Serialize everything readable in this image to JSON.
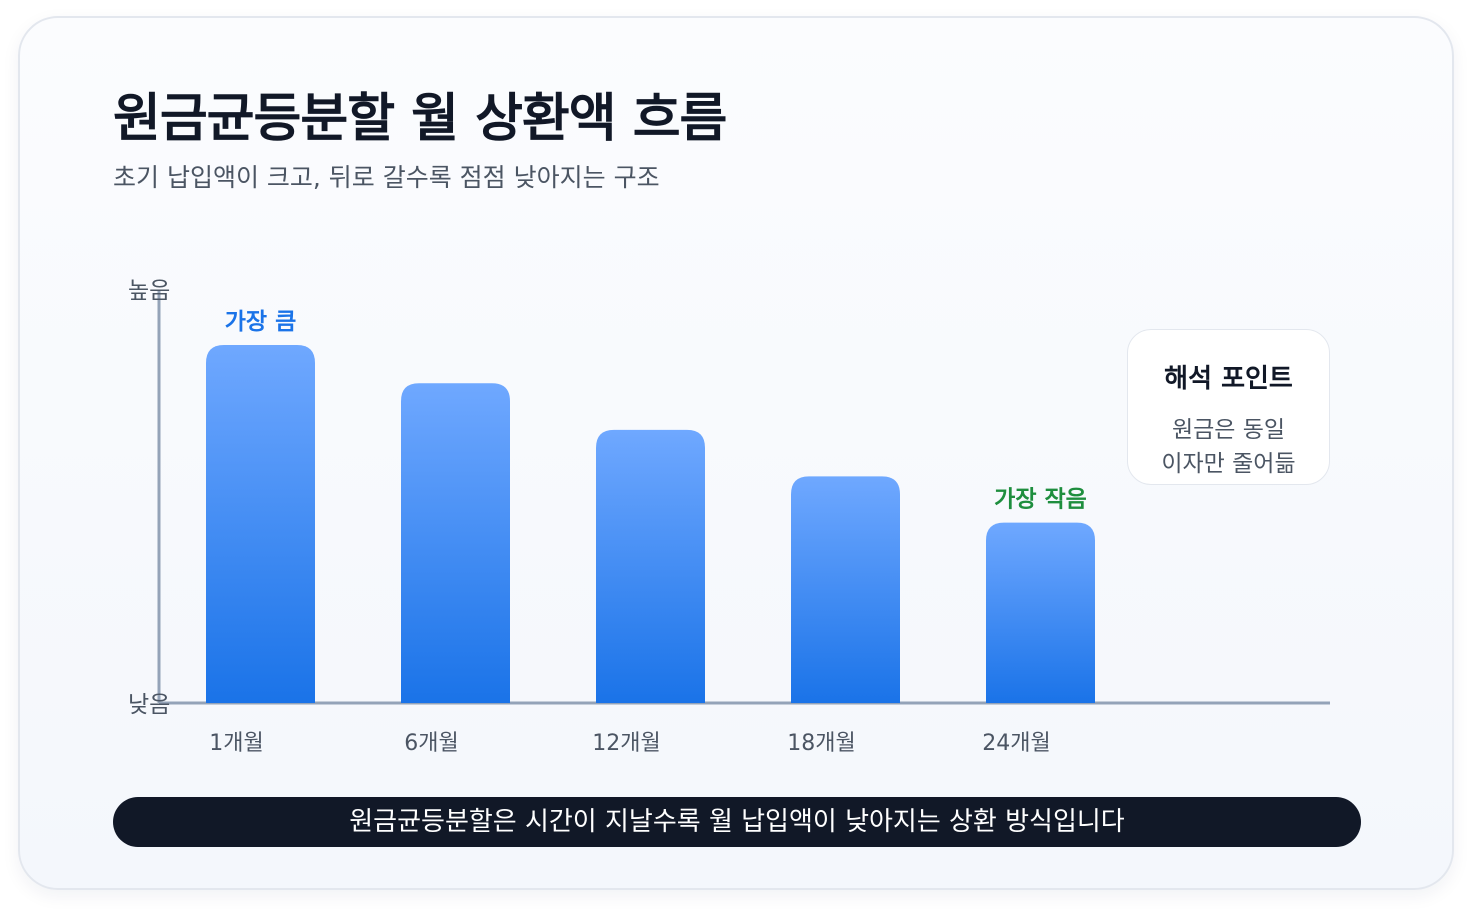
{
  "title": "원금균등분할 월 상환액 흐름",
  "subtitle": "초기 납입액이 크고, 뒤로 갈수록 점점 낮아지는 구조",
  "chart_data": {
    "type": "bar",
    "categories": [
      "1개월",
      "6개월",
      "12개월",
      "18개월",
      "24개월"
    ],
    "values": [
      100,
      89.3,
      76.3,
      63.3,
      50.4
    ],
    "ylim": [
      0,
      100
    ],
    "y_tick_labels": {
      "top": "높음",
      "bottom": "낮음"
    },
    "bar_labels": [
      {
        "index": 0,
        "text": "가장 큼",
        "color": "#1a73e8"
      },
      {
        "index": 4,
        "text": "가장 작음",
        "color": "#1e8e3e"
      }
    ],
    "bar_gradient": [
      "#6fa8ff",
      "#1a73e8"
    ],
    "axis_color": "#94a3b8",
    "grid": false,
    "legend": "none"
  },
  "callout": {
    "title": "해석 포인트",
    "line1": "원금은 동일",
    "line2": "이자만 줄어듦"
  },
  "banner": {
    "text": "원금균등분할은 시간이 지날수록 월 납입액이 낮아지는 상환 방식입니다"
  }
}
